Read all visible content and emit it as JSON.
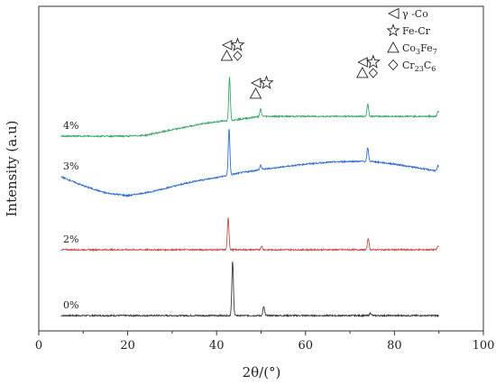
{
  "chart_data": {
    "type": "line",
    "xlabel": "2θ/(°)",
    "ylabel": "Intensity (a.u)",
    "xlim": [
      0,
      100
    ],
    "xticks": [
      0,
      20,
      40,
      60,
      80,
      100
    ],
    "yticks_shown": false,
    "series": [
      {
        "name": "0%",
        "color": "#3a3a3a",
        "baseline": 0,
        "x_range": [
          5,
          90
        ],
        "curve": [
          [
            5,
            0
          ],
          [
            90,
            0
          ]
        ],
        "peaks": [
          [
            43.6,
            60
          ],
          [
            50.6,
            10
          ],
          [
            74.6,
            3
          ]
        ]
      },
      {
        "name": "2%",
        "color": "#c0504d",
        "baseline": 0,
        "x_range": [
          5,
          90
        ],
        "curve": [
          [
            5,
            0
          ],
          [
            90,
            0
          ]
        ],
        "peaks": [
          [
            42.6,
            36
          ],
          [
            50.1,
            4
          ],
          [
            74.1,
            13
          ],
          [
            89.8,
            4
          ]
        ]
      },
      {
        "name": "3%",
        "color": "#2f6ecf",
        "baseline": 0,
        "x_range": [
          5,
          90
        ],
        "curve": [
          [
            5,
            0
          ],
          [
            10,
            -10
          ],
          [
            15,
            -18
          ],
          [
            20,
            -21
          ],
          [
            25,
            -17
          ],
          [
            30,
            -11
          ],
          [
            35,
            -5
          ],
          [
            40,
            -1
          ],
          [
            45,
            4
          ],
          [
            50,
            8
          ],
          [
            55,
            11
          ],
          [
            60,
            14
          ],
          [
            65,
            16
          ],
          [
            70,
            17
          ],
          [
            75,
            17
          ],
          [
            80,
            14
          ],
          [
            85,
            10
          ],
          [
            90,
            6
          ]
        ],
        "peaks": [
          [
            42.8,
            52
          ],
          [
            49.9,
            5
          ],
          [
            74.0,
            15
          ],
          [
            89.8,
            6
          ]
        ]
      },
      {
        "name": "4%",
        "color": "#3aa86a",
        "baseline": 0,
        "x_range": [
          5,
          90
        ],
        "curve": [
          [
            5,
            0
          ],
          [
            12,
            0
          ],
          [
            20,
            0
          ],
          [
            24,
            1
          ],
          [
            28,
            5
          ],
          [
            32,
            9
          ],
          [
            36,
            13
          ],
          [
            40,
            16
          ],
          [
            44,
            18
          ],
          [
            50,
            22
          ],
          [
            55,
            22
          ],
          [
            60,
            22
          ],
          [
            70,
            22
          ],
          [
            80,
            22
          ],
          [
            90,
            22
          ]
        ],
        "peaks": [
          [
            42.9,
            48
          ],
          [
            49.9,
            8
          ],
          [
            74.0,
            14
          ],
          [
            89.8,
            6
          ]
        ]
      }
    ],
    "peak_annotations": [
      {
        "x": 43.5,
        "markers": [
          "triangle-left",
          "star",
          "triangle-up",
          "diamond"
        ]
      },
      {
        "x": 50.0,
        "markers": [
          "triangle-left",
          "star",
          "triangle-up"
        ]
      },
      {
        "x": 74.0,
        "markers": [
          "triangle-left",
          "star",
          "triangle-up",
          "diamond"
        ]
      }
    ],
    "legend": {
      "placement": "top-right",
      "entries": [
        {
          "marker": "triangle-left",
          "label": "γ -Co"
        },
        {
          "marker": "star",
          "label": "Fe-Cr"
        },
        {
          "marker": "triangle-up",
          "label": "Co",
          "sub1": "3",
          "mid": "Fe",
          "sub2": "7"
        },
        {
          "marker": "diamond",
          "label": "Cr",
          "sub1": "23",
          "mid": "C",
          "sub2": "6"
        }
      ]
    }
  }
}
